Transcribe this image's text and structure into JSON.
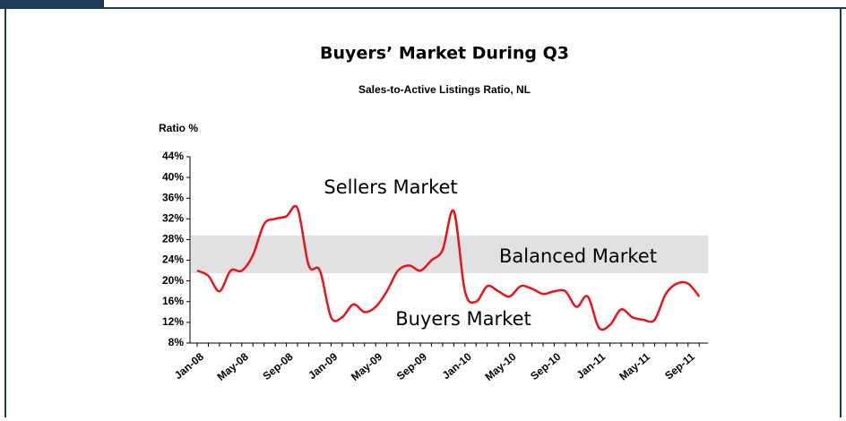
{
  "chart_data": {
    "type": "line",
    "title": "Buyers’ Market During Q3",
    "subtitle": "Sales-to-Active Listings Ratio, NL",
    "y_label": "Ratio %",
    "categories": [
      "Jan-08",
      null,
      null,
      null,
      "May-08",
      null,
      null,
      null,
      "Sep-08",
      null,
      null,
      null,
      "Jan-09",
      null,
      null,
      null,
      "May-09",
      null,
      null,
      null,
      "Sep-09",
      null,
      null,
      null,
      "Jan-10",
      null,
      null,
      null,
      "May-10",
      null,
      null,
      null,
      "Sep-10",
      null,
      null,
      null,
      "Jan-11",
      null,
      null,
      null,
      "May-11",
      null,
      null,
      null,
      "Sep-11",
      null
    ],
    "series": [
      {
        "name": "Ratio",
        "color": "#e8141b",
        "values": [
          22,
          21,
          18,
          22,
          22,
          25,
          31,
          32,
          32.5,
          34,
          23,
          22,
          13,
          13,
          15.5,
          14,
          15,
          18,
          22,
          23,
          22,
          24,
          26,
          33.5,
          18,
          16,
          19,
          18,
          17,
          19,
          18.5,
          17.5,
          18,
          18,
          15,
          17,
          11,
          11.5,
          14.5,
          13,
          12.5,
          12.5,
          17.5,
          19.5,
          19.5,
          17
        ]
      }
    ],
    "ylim": [
      8,
      44
    ],
    "yticks": [
      {
        "value": 8,
        "label": "8%"
      },
      {
        "value": 12,
        "label": "12%"
      },
      {
        "value": 16,
        "label": "16%"
      },
      {
        "value": 20,
        "label": "20%"
      },
      {
        "value": 24,
        "label": "24%"
      },
      {
        "value": 28,
        "label": "28%"
      },
      {
        "value": 32,
        "label": "32%"
      },
      {
        "value": 36,
        "label": "36%"
      },
      {
        "value": 40,
        "label": "40%"
      },
      {
        "value": 44,
        "label": "44%"
      }
    ],
    "band": {
      "from": 21.5,
      "to": 28.8,
      "color": "#e1e1e3",
      "label": "Balanced Market"
    },
    "annotations": [
      "Sellers  Market",
      "Buyers Market"
    ]
  }
}
